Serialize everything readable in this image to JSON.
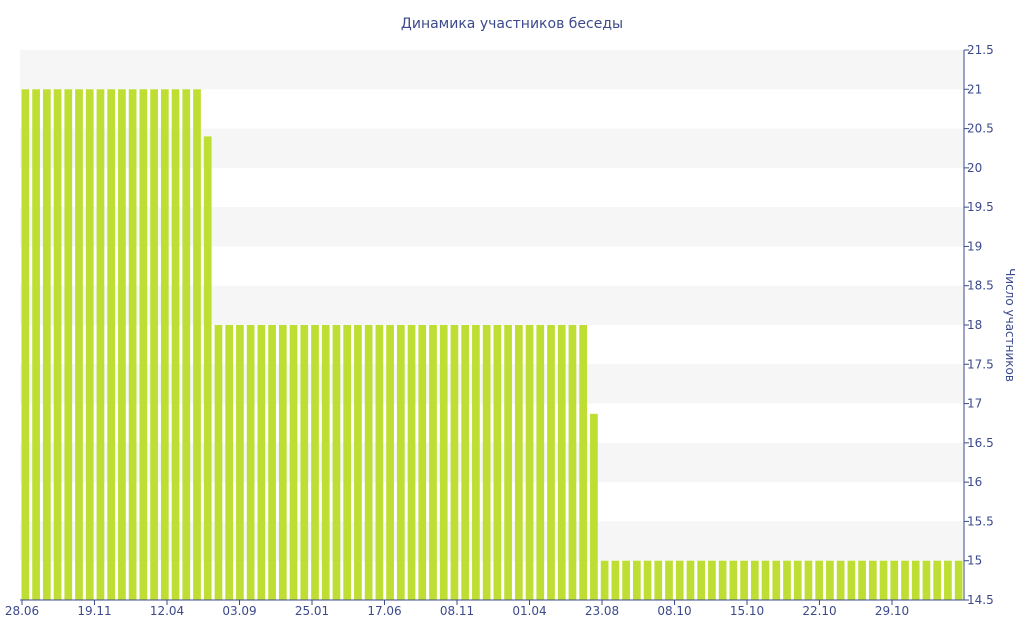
{
  "chart_data": {
    "type": "bar",
    "title": "Динамика участников беседы",
    "xlabel": "",
    "ylabel": "Число участников",
    "ylim": [
      14.5,
      21.5
    ],
    "yticks": [
      "14.5",
      "15",
      "15.5",
      "16",
      "16.5",
      "17",
      "17.5",
      "18",
      "18.5",
      "19",
      "19.5",
      "20",
      "20.5",
      "21",
      "21.5"
    ],
    "xtick_labels": [
      "28.06",
      "19.11",
      "12.04",
      "03.09",
      "25.01",
      "17.06",
      "08.11",
      "01.04",
      "23.08",
      "08.10",
      "15.10",
      "22.10",
      "29.10"
    ],
    "grid": "horizontal bands",
    "legend": "none",
    "colors": {
      "bar": "#bede34",
      "band": "#f6f6f6",
      "text": "#3c4a8c",
      "axis": "#3c4a8c"
    },
    "series": [
      {
        "values": [
          21,
          21,
          21,
          21,
          21,
          21,
          21,
          21,
          21,
          21,
          21,
          21,
          21,
          21,
          21,
          21,
          21,
          20.4,
          18,
          18,
          18,
          18,
          18,
          18,
          18,
          18,
          18,
          18,
          18,
          18,
          18,
          18,
          18,
          18,
          18,
          18,
          18,
          18,
          18,
          18,
          18,
          18,
          18,
          18,
          18,
          18,
          18,
          18,
          18,
          18,
          18,
          18,
          18,
          16.87,
          15,
          15,
          15,
          15,
          15,
          15,
          15,
          15,
          15,
          15,
          15,
          15,
          15,
          15,
          15,
          15,
          15,
          15,
          15,
          15,
          15,
          15,
          15,
          15,
          15,
          15,
          15,
          15,
          15,
          15,
          15,
          15,
          15,
          15
        ]
      }
    ]
  }
}
